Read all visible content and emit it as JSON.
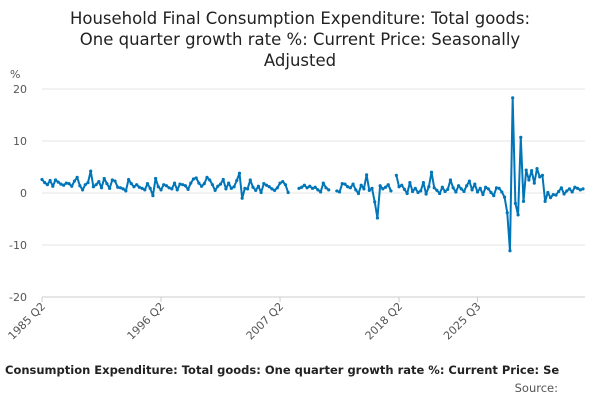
{
  "chart_data": {
    "type": "line",
    "title_lines": [
      "Household Final Consumption Expenditure: Total goods:",
      "One quarter growth rate %: Current Price: Seasonally",
      "Adjusted"
    ],
    "unit_label": "%",
    "ylim": [
      -20,
      20
    ],
    "y_ticks": [
      "20",
      "10",
      "0",
      "-10",
      "-20"
    ],
    "x_tick_labels": [
      "1985 Q2",
      "1996 Q2",
      "2007 Q2",
      "2018 Q2",
      "2025 Q3"
    ],
    "series": [
      {
        "color": "#0075b8",
        "values": [
          2.6,
          2.0,
          1.6,
          2.4,
          1.3,
          2.5,
          2.1,
          1.7,
          1.5,
          1.9,
          1.8,
          1.3,
          2.3,
          3.0,
          1.4,
          0.6,
          1.6,
          2.0,
          4.2,
          1.2,
          1.6,
          2.2,
          1.0,
          2.8,
          1.8,
          0.9,
          2.5,
          2.3,
          1.1,
          1.0,
          0.8,
          0.4,
          2.6,
          1.8,
          1.2,
          1.6,
          1.1,
          0.9,
          0.6,
          1.8,
          0.9,
          -0.5,
          2.8,
          1.2,
          0.6,
          1.6,
          1.4,
          1.0,
          0.8,
          1.9,
          0.6,
          1.7,
          1.6,
          1.4,
          0.7,
          1.9,
          2.7,
          2.9,
          1.9,
          1.3,
          1.8,
          3.0,
          2.5,
          1.6,
          0.5,
          1.3,
          1.7,
          2.6,
          0.8,
          1.9,
          0.9,
          1.2,
          2.4,
          3.8,
          -1.0,
          0.9,
          0.8,
          2.5,
          1.1,
          0.5,
          1.3,
          0.1,
          1.8,
          1.5,
          1.2,
          0.8,
          0.5,
          1.0,
          1.9,
          2.2,
          1.6,
          0.1,
          null,
          null,
          null,
          0.9,
          1.1,
          1.5,
          1.0,
          1.3,
          0.9,
          1.1,
          0.6,
          0.2,
          1.9,
          1.0,
          0.6,
          null,
          null,
          0.4,
          0.2,
          1.8,
          1.7,
          1.2,
          1.0,
          1.7,
          0.6,
          -0.1,
          1.5,
          0.8,
          3.5,
          0.5,
          0.9,
          -1.7,
          -4.8,
          1.4,
          0.8,
          1.1,
          1.6,
          0.4,
          null,
          3.4,
          1.2,
          1.5,
          0.7,
          -0.1,
          2.0,
          0.3,
          0.9,
          0.1,
          0.4,
          2.0,
          -0.2,
          1.2,
          4.0,
          1.0,
          0.5,
          -0.1,
          1.1,
          0.3,
          0.7,
          2.5,
          1.0,
          0.2,
          1.4,
          0.8,
          0.3,
          1.4,
          2.3,
          0.6,
          1.7,
          0.2,
          0.9,
          -0.3,
          1.1,
          0.8,
          0.1,
          -0.5,
          1.0,
          0.9,
          0.2,
          -0.8,
          -3.8,
          -11.1,
          18.3,
          -2.0,
          -4.2,
          10.7,
          -1.6,
          4.4,
          2.5,
          4.3,
          1.9,
          4.7,
          3.1,
          3.4,
          -1.6,
          0.1,
          -0.9,
          -0.3,
          -0.4,
          0.3,
          1.0,
          -0.2,
          0.4,
          0.8,
          0.2,
          1.1,
          0.9,
          0.6,
          0.8
        ]
      }
    ],
    "grid": "horizontal"
  },
  "footer": {
    "title": "Consumption Expenditure: Total goods: One quarter growth rate %: Current Price: Se",
    "source": "Source:"
  }
}
